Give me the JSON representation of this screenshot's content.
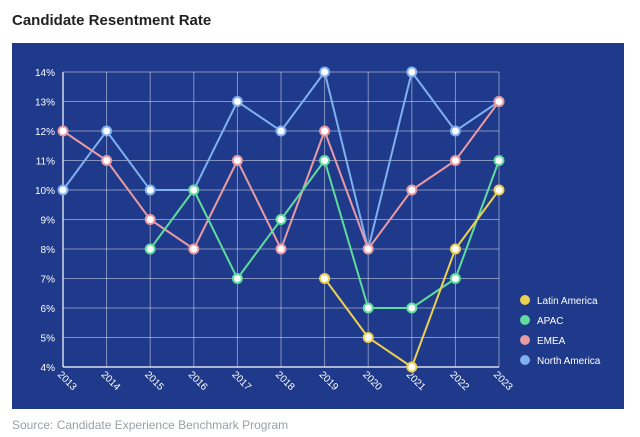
{
  "header": {
    "title": "Candidate Resentment Rate"
  },
  "footer": {
    "source": "Source: Candidate Experience Benchmark Program"
  },
  "chart_data": {
    "type": "line",
    "title": "Candidate Resentment Rate",
    "xlabel": "",
    "ylabel": "",
    "x": [
      "2013",
      "2014",
      "2015",
      "2016",
      "2017",
      "2018",
      "2019",
      "2020",
      "2021",
      "2022",
      "2023"
    ],
    "ylim": [
      4,
      14
    ],
    "y_unit": "%",
    "y_ticks": [
      4,
      5,
      6,
      7,
      8,
      9,
      10,
      11,
      12,
      13,
      14
    ],
    "grid": true,
    "legend_position": "bottom-right",
    "background": "#1f3a8a",
    "series": [
      {
        "name": "Latin America",
        "color": "#ecd051",
        "values": [
          null,
          null,
          null,
          null,
          null,
          null,
          7,
          5,
          4,
          8,
          10
        ]
      },
      {
        "name": "APAC",
        "color": "#5fdc9c",
        "values": [
          null,
          null,
          8,
          10,
          7,
          9,
          11,
          6,
          6,
          7,
          11
        ]
      },
      {
        "name": "EMEA",
        "color": "#e89aa3",
        "values": [
          12,
          11,
          9,
          8,
          11,
          8,
          12,
          8,
          10,
          11,
          13
        ]
      },
      {
        "name": "North America",
        "color": "#7fb0f0",
        "values": [
          10,
          12,
          10,
          10,
          13,
          12,
          14,
          8,
          14,
          12,
          13
        ]
      }
    ]
  }
}
